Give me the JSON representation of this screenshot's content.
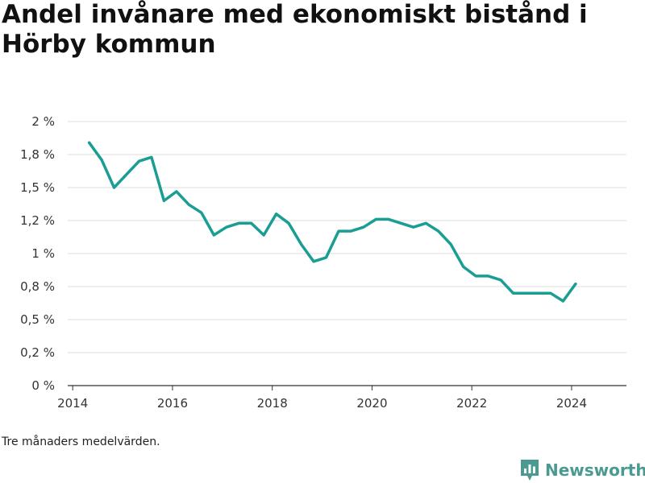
{
  "title": "Andel invånare med ekonomiskt bistånd i Hörby kommun",
  "note": "Tre månaders medelvärden.",
  "brand": {
    "name": "Newsworthy",
    "icon": "newsworthy-logo-icon",
    "color": "#4a9a92"
  },
  "chart_data": {
    "type": "line",
    "title": "Andel invånare med ekonomiskt bistånd i Hörby kommun",
    "xlabel": "",
    "ylabel": "",
    "color": "#1a9e94",
    "xlim": [
      2013.9,
      2025.1
    ],
    "ylim": [
      0,
      2
    ],
    "x_ticks": [
      2014,
      2016,
      2018,
      2020,
      2022,
      2024
    ],
    "x_tick_labels": [
      "2014",
      "2016",
      "2018",
      "2020",
      "2022",
      "2024"
    ],
    "y_ticks": [
      0,
      0.25,
      0.5,
      0.75,
      1,
      1.25,
      1.5,
      1.75,
      2
    ],
    "y_tick_labels": [
      "0 %",
      "0,2 %",
      "0,5 %",
      "0,8 %",
      "1 %",
      "1,2 %",
      "1,5 %",
      "1,8 %",
      "2 %"
    ],
    "grid": true,
    "series": [
      {
        "x": [
          2014.33,
          2014.58,
          2014.83,
          2015.08,
          2015.33,
          2015.58,
          2015.83,
          2016.08,
          2016.33,
          2016.58,
          2016.83,
          2017.08,
          2017.33,
          2017.58,
          2017.83,
          2018.08,
          2018.33,
          2018.58,
          2018.83,
          2019.08,
          2019.33,
          2019.58,
          2019.83,
          2020.08,
          2020.33,
          2020.58,
          2020.83,
          2021.08,
          2021.33,
          2021.58,
          2021.83,
          2022.08,
          2022.33,
          2022.58,
          2022.83,
          2023.08,
          2023.33,
          2023.58,
          2023.83,
          2024.08
        ],
        "values": [
          1.84,
          1.71,
          1.5,
          1.6,
          1.7,
          1.73,
          1.4,
          1.47,
          1.37,
          1.31,
          1.14,
          1.2,
          1.23,
          1.23,
          1.14,
          1.3,
          1.23,
          1.07,
          0.94,
          0.97,
          1.17,
          1.17,
          1.2,
          1.26,
          1.26,
          1.23,
          1.2,
          1.23,
          1.17,
          1.07,
          0.9,
          0.83,
          0.83,
          0.8,
          0.7,
          0.7,
          0.7,
          0.7,
          0.64,
          0.77
        ]
      }
    ]
  }
}
